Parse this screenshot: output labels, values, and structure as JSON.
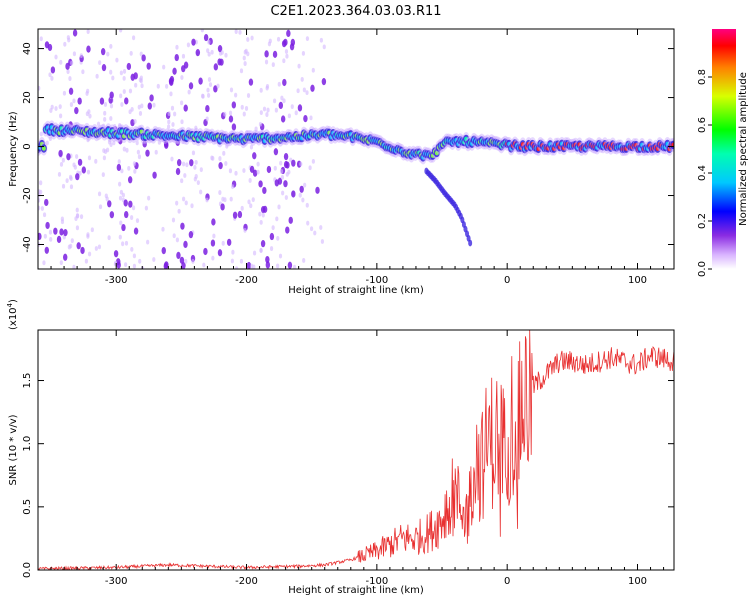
{
  "title": "C2E1.2023.364.03.03.R11",
  "colors": {
    "snr_line": "#e83030",
    "track_core": "#ff2020",
    "noise": "#8a2be2"
  },
  "chart_data": [
    {
      "type": "heatmap",
      "name": "spectrogram",
      "xlabel": "Height of straight line (km)",
      "ylabel": "Frequency (Hz)",
      "xlim": [
        -360,
        128
      ],
      "ylim": [
        -50,
        48
      ],
      "x_ticks": [
        -300,
        -200,
        -100,
        0,
        100
      ],
      "x_tick_labels": [
        "-300",
        "-200",
        "-100",
        "0",
        "100"
      ],
      "y_ticks": [
        40,
        20,
        0,
        -20,
        -40
      ],
      "y_tick_labels": [
        "40",
        "20",
        "0",
        "-20",
        "-40"
      ],
      "colorbar": {
        "label": "Normalized spectral amplitude",
        "range": [
          0,
          1
        ],
        "ticks": [
          0.0,
          0.2,
          0.4,
          0.6,
          0.8
        ],
        "tick_labels": [
          "0.0",
          "0.2",
          "0.4",
          "0.6",
          "0.8"
        ],
        "colormap": "white-purple-blue-cyan-green-yellow-red-magenta"
      },
      "tone_track": [
        {
          "x": -355,
          "y": 7
        },
        {
          "x": -320,
          "y": 6
        },
        {
          "x": -280,
          "y": 5
        },
        {
          "x": -240,
          "y": 4
        },
        {
          "x": -200,
          "y": 3
        },
        {
          "x": -160,
          "y": 4
        },
        {
          "x": -140,
          "y": 5
        },
        {
          "x": -120,
          "y": 4
        },
        {
          "x": -100,
          "y": 2
        },
        {
          "x": -80,
          "y": -2
        },
        {
          "x": -60,
          "y": -4
        },
        {
          "x": -45,
          "y": 2
        },
        {
          "x": -30,
          "y": 2
        },
        {
          "x": -10,
          "y": 1
        },
        {
          "x": 10,
          "y": 0
        },
        {
          "x": 60,
          "y": 0
        },
        {
          "x": 128,
          "y": 0
        }
      ],
      "branch_track": [
        {
          "x": -62,
          "y": -10
        },
        {
          "x": -55,
          "y": -14
        },
        {
          "x": -48,
          "y": -19
        },
        {
          "x": -40,
          "y": -24
        },
        {
          "x": -35,
          "y": -29
        },
        {
          "x": -28,
          "y": -40
        }
      ]
    },
    {
      "type": "line",
      "name": "snr",
      "xlabel": "Height of straight line (km)",
      "ylabel": "SNR (10 * v/v)",
      "multiplier_label": "(x10",
      "multiplier_exp": "4",
      "multiplier_close": ")",
      "xlim": [
        -360,
        128
      ],
      "ylim": [
        0,
        1.9
      ],
      "x_ticks": [
        -300,
        -200,
        -100,
        0,
        100
      ],
      "x_tick_labels": [
        "-300",
        "-200",
        "-100",
        "0",
        "100"
      ],
      "y_ticks": [
        0.0,
        0.5,
        1.0,
        1.5
      ],
      "y_tick_labels": [
        "0.0",
        "0.5",
        "1.0",
        "1.5"
      ],
      "series": [
        {
          "x": [
            -360,
            -300,
            -260,
            -200,
            -160,
            -140,
            -120,
            -100,
            -90,
            -80,
            -70,
            -60,
            -50,
            -45,
            -40,
            -35,
            -30,
            -25,
            -20,
            -15,
            -10,
            -5,
            0,
            10,
            20,
            30,
            40,
            50,
            60,
            80,
            100,
            110,
            128
          ],
          "y": [
            0.01,
            0.02,
            0.04,
            0.02,
            0.03,
            0.04,
            0.08,
            0.15,
            0.2,
            0.25,
            0.25,
            0.3,
            0.4,
            0.55,
            0.6,
            0.5,
            0.45,
            0.9,
            0.8,
            1.0,
            1.05,
            1.0,
            1.1,
            1.3,
            1.45,
            1.55,
            1.65,
            1.65,
            1.62,
            1.68,
            1.62,
            1.7,
            1.65
          ]
        }
      ]
    }
  ]
}
